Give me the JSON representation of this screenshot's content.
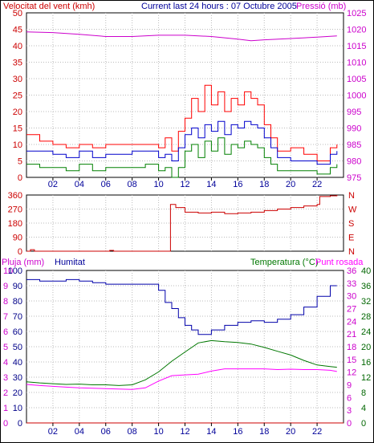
{
  "header": {
    "wind_label": "Velocitat del vent (kmh)",
    "title": "Current last 24 hours : 07 Octubre 2005",
    "pressure_label": "Pressió (mb)"
  },
  "lower_header": {
    "rain_label": "Pluja (mm)",
    "humidity_label": "Humitat",
    "temp_label": "Temperatura (°C)",
    "dew_label": "Punt rosada"
  },
  "x_ticks": [
    "02",
    "04",
    "06",
    "08",
    "10",
    "12",
    "14",
    "16",
    "18",
    "20",
    "22"
  ],
  "colors": {
    "wind_gust": "#ff0000",
    "wind_avg": "#0000cc",
    "wind_min": "#008000",
    "pressure": "#cc00cc",
    "direction": "#cc0000",
    "rain": "#cc0000",
    "humidity": "#0000aa",
    "temperature": "#007700",
    "dewpoint": "#ff00ff",
    "grid": "#bbbbbb",
    "wind_axis": "#cc0000",
    "pressure_axis": "#cc00cc",
    "humidity_axis": "#000088",
    "temp_axis": "#006600",
    "tick_text": "#000099"
  },
  "chart_data": [
    {
      "type": "line",
      "x_range_hours": [
        0,
        24
      ],
      "y_left": {
        "label": "Velocitat del vent (kmh)",
        "range": [
          0,
          50
        ],
        "ticks": [
          0,
          5,
          10,
          15,
          20,
          25,
          30,
          35,
          40,
          45,
          50
        ]
      },
      "y_right": {
        "label": "Pressió (mb)",
        "range": [
          975,
          1025
        ],
        "ticks": [
          975,
          980,
          985,
          990,
          995,
          1000,
          1005,
          1010,
          1015,
          1020,
          1025
        ]
      },
      "grid": true,
      "series": [
        {
          "key": "gust",
          "axis": "left",
          "x": [
            0,
            1,
            2,
            3,
            4,
            5,
            6,
            7,
            8,
            9,
            10,
            10.5,
            11,
            11.5,
            12,
            12.5,
            13,
            13.5,
            14,
            14.5,
            15,
            15.5,
            16,
            16.5,
            17,
            17.5,
            18,
            18.5,
            19,
            20,
            21,
            22,
            23,
            23.5
          ],
          "y": [
            13,
            11,
            10,
            9,
            10,
            9,
            10,
            10,
            10,
            10,
            9,
            12,
            8,
            14,
            18,
            24,
            20,
            28,
            22,
            26,
            20,
            24,
            22,
            26,
            24,
            22,
            16,
            12,
            8,
            9,
            7,
            5,
            9,
            10
          ]
        },
        {
          "key": "avg",
          "axis": "left",
          "x": [
            0,
            1,
            2,
            3,
            4,
            5,
            6,
            7,
            8,
            9,
            10,
            10.5,
            11,
            11.5,
            12,
            12.5,
            13,
            13.5,
            14,
            14.5,
            15,
            15.5,
            16,
            16.5,
            17,
            17.5,
            18,
            18.5,
            19,
            20,
            21,
            22,
            23,
            23.5
          ],
          "y": [
            8,
            8,
            7,
            6,
            8,
            6,
            7,
            7,
            8,
            8,
            6,
            7,
            5,
            9,
            13,
            15,
            12,
            16,
            14,
            17,
            13,
            16,
            15,
            17,
            16,
            15,
            12,
            9,
            6,
            5,
            5,
            4,
            7,
            8
          ]
        },
        {
          "key": "min",
          "axis": "left",
          "x": [
            0,
            1,
            2,
            3,
            4,
            5,
            6,
            7,
            8,
            9,
            10,
            10.5,
            11,
            11.5,
            12,
            12.5,
            13,
            13.5,
            14,
            14.5,
            15,
            15.5,
            16,
            16.5,
            17,
            17.5,
            18,
            18.5,
            19,
            20,
            21,
            22,
            23,
            23.5
          ],
          "y": [
            4,
            3,
            3,
            2,
            4,
            2,
            3,
            3,
            3,
            4,
            2,
            3,
            0,
            3,
            8,
            10,
            6,
            11,
            8,
            12,
            7,
            10,
            9,
            11,
            10,
            9,
            6,
            4,
            2,
            2,
            2,
            1,
            3,
            4
          ]
        },
        {
          "key": "pressure",
          "axis": "right",
          "x": [
            0,
            2,
            4,
            6,
            8,
            10,
            12,
            14,
            16,
            17,
            18,
            20,
            22,
            23.5
          ],
          "y": [
            1019.2,
            1019,
            1018.5,
            1017.8,
            1017.8,
            1018.2,
            1018.2,
            1017.8,
            1017,
            1016.5,
            1016.8,
            1017.2,
            1017.6,
            1018
          ]
        }
      ]
    },
    {
      "type": "line",
      "x_range_hours": [
        0,
        24
      ],
      "y_left": {
        "label": "",
        "range": [
          0,
          360
        ],
        "ticks": [
          0,
          90,
          180,
          270,
          360
        ]
      },
      "y_right": {
        "label": "",
        "ticks": [
          "N",
          "W",
          "S",
          "E",
          "N"
        ]
      },
      "grid": true,
      "series": [
        {
          "key": "direction",
          "x": [
            0,
            0.3,
            0.6,
            2,
            4,
            6,
            6.3,
            6.6,
            8,
            10,
            10.8,
            10.9,
            11.3,
            12,
            13,
            14,
            15,
            16,
            17,
            18,
            19,
            20,
            21,
            22,
            22.2,
            23,
            23.5
          ],
          "y": [
            0,
            10,
            0,
            0,
            0,
            0,
            5,
            0,
            0,
            0,
            0,
            300,
            280,
            250,
            245,
            250,
            240,
            245,
            250,
            260,
            270,
            280,
            290,
            300,
            350,
            355,
            360
          ]
        }
      ]
    },
    {
      "type": "line",
      "x_range_hours": [
        0,
        24
      ],
      "y_left": {
        "label": "Pluja (mm)",
        "range": [
          0,
          10
        ],
        "ticks": [
          0,
          1,
          2,
          3,
          4,
          5,
          6,
          7,
          8,
          9,
          10
        ]
      },
      "y_left_secondary": {
        "label": "Humitat",
        "range": [
          0,
          100
        ],
        "ticks": [
          0,
          10,
          20,
          30,
          40,
          50,
          60,
          70,
          80,
          90,
          100
        ]
      },
      "y_right": {
        "label": "Temperatura (°C)",
        "range": [
          0,
          40
        ],
        "ticks": [
          0,
          4,
          8,
          12,
          16,
          20,
          24,
          28,
          32,
          36,
          40
        ]
      },
      "y_right_secondary": {
        "label": "Punt rosada",
        "range": [
          0,
          40
        ],
        "ticks": [
          0,
          3,
          6,
          9,
          12,
          15,
          18,
          21,
          24,
          27,
          30,
          33,
          36
        ]
      },
      "grid": true,
      "series": [
        {
          "key": "rain",
          "axis": "rain",
          "x": [
            0,
            24
          ],
          "y": [
            0,
            0
          ]
        },
        {
          "key": "humidity",
          "axis": "humidity",
          "x": [
            0,
            1,
            2,
            3,
            4,
            5,
            6,
            7,
            8,
            9,
            10,
            10.5,
            11,
            11.5,
            12,
            12.5,
            13,
            14,
            15,
            16,
            17,
            18,
            19,
            20,
            21,
            22,
            23,
            23.5
          ],
          "y": [
            94,
            93,
            93,
            94,
            93,
            92,
            91,
            91,
            91,
            91,
            87,
            79,
            75,
            69,
            64,
            61,
            58,
            61,
            64,
            66,
            67,
            66,
            68,
            71,
            76,
            83,
            90,
            90
          ]
        },
        {
          "key": "temperature",
          "axis": "temp",
          "x": [
            0,
            1,
            2,
            3,
            4,
            5,
            6,
            7,
            8,
            9,
            10,
            11,
            12,
            13,
            14,
            15,
            16,
            17,
            18,
            19,
            20,
            21,
            22,
            23,
            23.5
          ],
          "y": [
            10.8,
            10.5,
            10.3,
            10.1,
            10.2,
            10.0,
            10.0,
            9.8,
            10.0,
            11.3,
            13.4,
            16.2,
            18.6,
            21.0,
            21.6,
            21.3,
            21.1,
            20.7,
            19.8,
            18.8,
            17.8,
            16.4,
            15.2,
            14.8,
            14.6
          ]
        },
        {
          "key": "dewpoint",
          "axis": "temp",
          "x": [
            0,
            1,
            2,
            3,
            4,
            5,
            6,
            7,
            8,
            9,
            10,
            11,
            12,
            13,
            14,
            15,
            16,
            17,
            18,
            19,
            20,
            21,
            22,
            23,
            23.5
          ],
          "y": [
            10.1,
            9.8,
            9.6,
            9.4,
            9.2,
            9.1,
            9.0,
            8.9,
            8.8,
            9.2,
            11.0,
            12.4,
            12.6,
            12.8,
            13.6,
            14.2,
            14.2,
            14.2,
            14.2,
            14.0,
            14.1,
            14.0,
            14.0,
            13.8,
            13.5
          ]
        }
      ]
    }
  ]
}
